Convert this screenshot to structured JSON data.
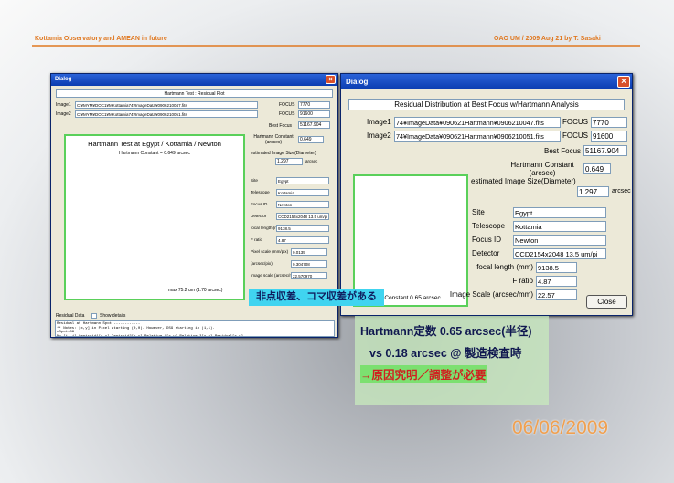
{
  "header": {
    "left": "Kottamia Observatory and AMEAN in future",
    "right": "OAO UM / 2009 Aug 21  by T. Sasaki"
  },
  "left_dialog": {
    "title": "Dialog",
    "heading": "Hartmann Test : Residual Plot",
    "images": [
      {
        "label": "Image1",
        "path": "C:¥MYM¥DOC1¥MKottamia74¥ImageData¥0906210047.fits",
        "focus_label": "FOCUS",
        "focus": "7770"
      },
      {
        "label": "Image2",
        "path": "C:¥MYM¥DOC1¥MKottamia74¥ImageData¥0906210051.fits",
        "focus_label": "FOCUS",
        "focus": "91600"
      }
    ],
    "plot_title": "Hartmann Test at  Egypt / Kottamia / Newton",
    "plot_subtitle": "Hartmann Constant = 0.649 arcsec",
    "plot_note": "max 75.2 um (1.70 arcsec)",
    "best_focus_label": "Best Focus",
    "best_focus": "51167.904",
    "constant_label": "Hartmann Constant (arcsec)",
    "constant": "0.649",
    "size_label": "estimated Image Size(Diameter)",
    "size": "1.297",
    "size_unit": "arcsec",
    "fields": [
      {
        "label": "Site",
        "value": "Egypt"
      },
      {
        "label": "Telescope",
        "value": "Kottamia"
      },
      {
        "label": "Focus ID",
        "value": "Newton"
      },
      {
        "label": "Detector",
        "value": "CCD2154x2048 13.5 um/pi"
      },
      {
        "label": "focal length (mm)",
        "value": "9138.5"
      },
      {
        "label": "F ratio",
        "value": "4.87"
      },
      {
        "label": "Pixel scale (mm/pix)",
        "value": "0.0135"
      },
      {
        "label": "(arcsec/pix)",
        "value": "0.304708"
      },
      {
        "label": "Image scale (arcsec/mm)",
        "value": "22.570970"
      }
    ],
    "residual_data": "Residual Data",
    "show_details": "Show details",
    "log": [
      "Residual at Hartmann Spot ------------",
      "  ** Notes: [x,y] in Pixel starting (0,0).  However, DS9 starting in (1,1).",
      "nSpot=59",
      "No.[i, j]   Centroid1[x,y]   Centroid2[x,y]   Relative-1[x,y]   Relative-2[x,y]   Residual[x,y]",
      "#1:[ 2, 0]  [ 12.6, 10.4]  [ 16.4, 19.2]  [ -2.4, -3.5]  [ -2.3, -3.3]  [ 45.4, 0.7, 45.4]",
      "#2:[ 3, 0]  [ 13.5, 10.3]  [ 15.5, 19.5]  [ -1.5, -3.7]  [ -1.4, -3.6]  [ 39.5, 8.4, 30.1]"
    ]
  },
  "right_dialog": {
    "title": "Dialog",
    "heading": "Residual Distribution at Best Focus w/Hartmann Analysis",
    "images": [
      {
        "label": "Image1",
        "path": "74¥ImageData¥090621Hartmann¥0906210047.fits",
        "focus_label": "FOCUS",
        "focus": "7770"
      },
      {
        "label": "Image2",
        "path": "74¥ImageData¥090621Hartmann¥0906210051.fits",
        "focus_label": "FOCUS",
        "focus": "91600"
      }
    ],
    "best_focus_label": "Best Focus",
    "best_focus": "51167.904",
    "constant_label": "Hartmann Constant (arcsec)",
    "constant": "0.649",
    "size_label": "estimated Image Size(Diameter)",
    "size": "1.297",
    "size_unit": "arcsec",
    "plot_label": "Hartmann Constant 0.65 arcsec",
    "fields": [
      {
        "label": "Site",
        "value": "Egypt"
      },
      {
        "label": "Telescope",
        "value": "Kottamia"
      },
      {
        "label": "Focus ID",
        "value": "Newton"
      },
      {
        "label": "Detector",
        "value": "CCD2154x2048 13.5 um/pi"
      },
      {
        "label": "focal length (mm)",
        "value": "9138.5"
      },
      {
        "label": "F ratio",
        "value": "4.87"
      },
      {
        "label": "Image Scale (arcsec/mm)",
        "value": "22.57"
      }
    ],
    "close": "Close"
  },
  "callout": "非点収差、コマ収差がある",
  "note": [
    "Hartmann定数 0.65 arcsec(半径)",
    "vs 0.18 arcsec @ 製造検査時",
    "→原因究明／調整が必要"
  ],
  "date": "06/06/2009"
}
